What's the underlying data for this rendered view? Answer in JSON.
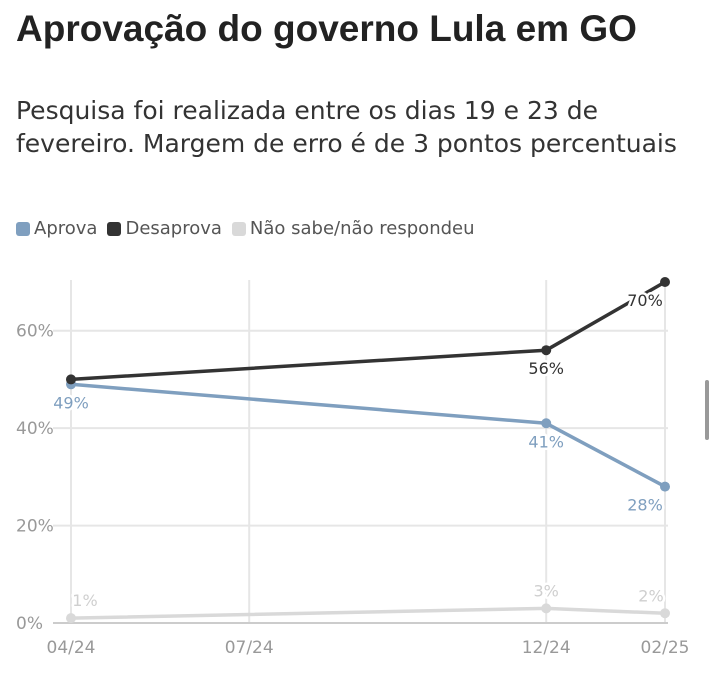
{
  "header": {
    "title": "Aprovação do governo Lula em GO",
    "subtitle": "Pesquisa foi realizada entre os dias 19 e 23 de fevereiro. Margem de erro é de 3 pontos percentuais"
  },
  "legend": [
    {
      "label": "Aprova",
      "color": "#7f9fbf"
    },
    {
      "label": "Desaprova",
      "color": "#333333"
    },
    {
      "label": "Não sabe/não respondeu",
      "color": "#d9d9d9"
    }
  ],
  "chart_data": {
    "type": "line",
    "title": "Aprovação do governo Lula em GO",
    "subtitle": "Pesquisa foi realizada entre os dias 19 e 23 de fevereiro. Margem de erro é de 3 pontos percentuais",
    "x_ticks": [
      "04/24",
      "07/24",
      "12/24",
      "02/25"
    ],
    "x": [
      "2024-04",
      "2024-12",
      "2025-02"
    ],
    "y_ticks": [
      "0%",
      "20%",
      "40%",
      "60%"
    ],
    "ylim": [
      0,
      70
    ],
    "grid": true,
    "legend_position": "top-left",
    "series": [
      {
        "name": "Aprova",
        "color": "#7f9fbf",
        "values": [
          49,
          41,
          28
        ],
        "labels": [
          "49%",
          "41%",
          "28%"
        ]
      },
      {
        "name": "Desaprova",
        "color": "#333333",
        "values": [
          50,
          56,
          70
        ],
        "labels": [
          "",
          "56%",
          "70%"
        ]
      },
      {
        "name": "Não sabe/não respondeu",
        "color": "#d9d9d9",
        "values": [
          1,
          3,
          2
        ],
        "labels": [
          "1%",
          "3%",
          "2%"
        ]
      }
    ]
  }
}
